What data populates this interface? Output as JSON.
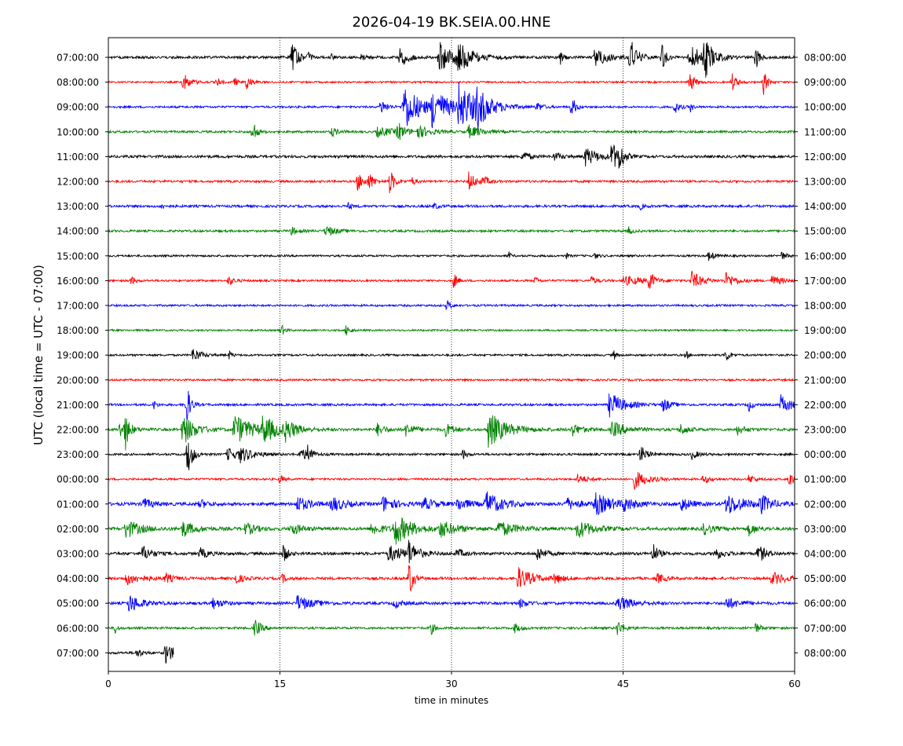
{
  "chart_data": {
    "type": "line",
    "title": "2026-04-19 BK.SEIA.00.HNE",
    "xlabel": "time in minutes",
    "ylabel": "UTC (local time = UTC - 07:00)",
    "xlim": [
      0,
      60
    ],
    "x_ticks": [
      0,
      15,
      30,
      45,
      60
    ],
    "vertical_gridlines_at": [
      15,
      30,
      45
    ],
    "grid": "x-only dotted",
    "color_cycle": [
      "#000000",
      "#ff0000",
      "#0000ff",
      "#008000"
    ],
    "rows": [
      {
        "left": "07:00:00",
        "right": "08:00:00",
        "base": 1.2,
        "until": 60,
        "events": [
          [
            16,
            5,
            0.5
          ],
          [
            17.5,
            1.2,
            0.2
          ],
          [
            19.5,
            1.0,
            0.2
          ],
          [
            22,
            1,
            0.5
          ],
          [
            25.5,
            3.5,
            0.6
          ],
          [
            28.9,
            5,
            1
          ],
          [
            30.4,
            5,
            1.2
          ],
          [
            39.5,
            2.5,
            0.2
          ],
          [
            42.5,
            3,
            1
          ],
          [
            45.6,
            7,
            0.5
          ],
          [
            48.4,
            4,
            0.3
          ],
          [
            50.8,
            4,
            1.2
          ],
          [
            52.1,
            6,
            0.6
          ],
          [
            56.6,
            4,
            0.3
          ]
        ]
      },
      {
        "left": "08:00:00",
        "right": "09:00:00",
        "base": 0.8,
        "until": 60,
        "events": [
          [
            6.5,
            3,
            0.6
          ],
          [
            9.5,
            1.5,
            0.3
          ],
          [
            11,
            1.5,
            0.3
          ],
          [
            12,
            3,
            0.4
          ],
          [
            50.8,
            3.5,
            0.4
          ],
          [
            54.5,
            3,
            0.4
          ],
          [
            57.3,
            4,
            0.3
          ]
        ]
      },
      {
        "left": "09:00:00",
        "right": "10:00:00",
        "base": 0.9,
        "until": 60,
        "events": [
          [
            23.8,
            2.5,
            0.5
          ],
          [
            25.8,
            8,
            1.3
          ],
          [
            28.3,
            6,
            1.3
          ],
          [
            30.6,
            7,
            1.6
          ],
          [
            32.2,
            5,
            0.9
          ],
          [
            37.5,
            1.5,
            0.4
          ],
          [
            40.5,
            4,
            0.3
          ],
          [
            49.5,
            2,
            0.4
          ],
          [
            50.9,
            1.5,
            0.2
          ]
        ]
      },
      {
        "left": "10:00:00",
        "right": "11:00:00",
        "base": 1.0,
        "until": 60,
        "events": [
          [
            12.6,
            4.5,
            0.3
          ],
          [
            19.5,
            1.5,
            0.5
          ],
          [
            23.5,
            1.5,
            1.5
          ],
          [
            25.3,
            3,
            0.5
          ],
          [
            27,
            2,
            1
          ],
          [
            31.5,
            2,
            1
          ]
        ]
      },
      {
        "left": "11:00:00",
        "right": "12:00:00",
        "base": 1.2,
        "until": 60,
        "events": [
          [
            36.2,
            2,
            0.5
          ],
          [
            39,
            1.2,
            0.6
          ],
          [
            41.7,
            3,
            1
          ],
          [
            44,
            5,
            0.5
          ],
          [
            44.7,
            4.5,
            0.3
          ]
        ]
      },
      {
        "left": "12:00:00",
        "right": "13:00:00",
        "base": 1.0,
        "until": 60,
        "events": [
          [
            21.8,
            3,
            0.5
          ],
          [
            22.8,
            2.5,
            0.4
          ],
          [
            24.6,
            4,
            0.4
          ],
          [
            26.5,
            1.5,
            0.3
          ],
          [
            31.5,
            3,
            0.6
          ],
          [
            32.8,
            1.5,
            0.4
          ]
        ]
      },
      {
        "left": "13:00:00",
        "right": "14:00:00",
        "base": 1.1,
        "until": 60,
        "events": [
          [
            4.6,
            1,
            0.3
          ],
          [
            21,
            1,
            0.3
          ],
          [
            28.5,
            1,
            0.3
          ],
          [
            46.5,
            1,
            0.3
          ]
        ]
      },
      {
        "left": "14:00:00",
        "right": "15:00:00",
        "base": 1.0,
        "until": 60,
        "events": [
          [
            16,
            1.3,
            0.5
          ],
          [
            19,
            1.8,
            0.8
          ],
          [
            45.5,
            1.2,
            0.3
          ]
        ]
      },
      {
        "left": "15:00:00",
        "right": "16:00:00",
        "base": 0.9,
        "until": 60,
        "events": [
          [
            35,
            1.2,
            0.2
          ],
          [
            40,
            1,
            0.2
          ],
          [
            42.5,
            1,
            0.3
          ],
          [
            52.5,
            1.5,
            0.5
          ],
          [
            58.8,
            1.5,
            0.4
          ]
        ]
      },
      {
        "left": "16:00:00",
        "right": "17:00:00",
        "base": 0.9,
        "until": 60,
        "events": [
          [
            2,
            1.5,
            0.3
          ],
          [
            10.5,
            1.5,
            0.5
          ],
          [
            30.2,
            2.5,
            0.3
          ],
          [
            37.3,
            1.2,
            0.3
          ],
          [
            42.2,
            1.3,
            0.5
          ],
          [
            45,
            1.5,
            1.8
          ],
          [
            47.3,
            4,
            0.3
          ],
          [
            51,
            3,
            0.8
          ],
          [
            54,
            2.5,
            0.8
          ],
          [
            58,
            1.5,
            1
          ]
        ]
      },
      {
        "left": "17:00:00",
        "right": "18:00:00",
        "base": 0.9,
        "until": 60,
        "events": [
          [
            29.6,
            1.8,
            0.3
          ]
        ]
      },
      {
        "left": "18:00:00",
        "right": "19:00:00",
        "base": 0.8,
        "until": 60,
        "events": [
          [
            15.1,
            2,
            0.3
          ],
          [
            20.8,
            2,
            0.3
          ]
        ]
      },
      {
        "left": "19:00:00",
        "right": "20:00:00",
        "base": 0.9,
        "until": 60,
        "events": [
          [
            7.4,
            2.5,
            0.6
          ],
          [
            10.6,
            1.5,
            0.2
          ],
          [
            44.2,
            1.5,
            0.2
          ],
          [
            50.5,
            1.5,
            0.2
          ],
          [
            54,
            2.5,
            0.3
          ]
        ]
      },
      {
        "left": "20:00:00",
        "right": "21:00:00",
        "base": 0.9,
        "until": 60,
        "events": []
      },
      {
        "left": "21:00:00",
        "right": "22:00:00",
        "base": 1.0,
        "until": 60,
        "events": [
          [
            4,
            1.5,
            0.2
          ],
          [
            6.8,
            8,
            0.3
          ],
          [
            43.8,
            4,
            1.2
          ],
          [
            48.5,
            2.5,
            0.5
          ],
          [
            56,
            2,
            0.3
          ],
          [
            58.8,
            3,
            0.9
          ]
        ]
      },
      {
        "left": "22:00:00",
        "right": "23:00:00",
        "base": 1.2,
        "until": 60,
        "events": [
          [
            1,
            2.5,
            0.7
          ],
          [
            1.5,
            5,
            0.3
          ],
          [
            6.5,
            5,
            1
          ],
          [
            11,
            5,
            1.5
          ],
          [
            13.5,
            4,
            1.2
          ],
          [
            15.5,
            3,
            0.8
          ],
          [
            23.5,
            2,
            0.6
          ],
          [
            26,
            2,
            0.8
          ],
          [
            29.5,
            2,
            0.7
          ],
          [
            33.2,
            6,
            1.4
          ],
          [
            40.5,
            2,
            0.8
          ],
          [
            44,
            2.5,
            1.2
          ],
          [
            50,
            1.8,
            0.6
          ],
          [
            55,
            1.5,
            0.6
          ]
        ]
      },
      {
        "left": "23:00:00",
        "right": "00:00:00",
        "base": 1.0,
        "until": 60,
        "events": [
          [
            6.9,
            7,
            0.4
          ],
          [
            10.4,
            2,
            1
          ],
          [
            11.5,
            2,
            1.1
          ],
          [
            16.8,
            2,
            0.7
          ],
          [
            17.5,
            5,
            0.2
          ],
          [
            31,
            1.5,
            0.3
          ],
          [
            46.5,
            3,
            0.5
          ],
          [
            51,
            1.5,
            0.5
          ]
        ]
      },
      {
        "left": "00:00:00",
        "right": "01:00:00",
        "base": 0.9,
        "until": 60,
        "events": [
          [
            15,
            1.5,
            0.3
          ],
          [
            41,
            1.5,
            0.8
          ],
          [
            46,
            3,
            1
          ],
          [
            52,
            1.5,
            0.5
          ],
          [
            56,
            1.5,
            0.5
          ],
          [
            59.5,
            2.5,
            0.5
          ]
        ]
      },
      {
        "left": "01:00:00",
        "right": "02:00:00",
        "base": 1.4,
        "until": 60,
        "events": [
          [
            3,
            2,
            0.7
          ],
          [
            8,
            1.5,
            0.6
          ],
          [
            16.5,
            2.5,
            1
          ],
          [
            19.5,
            2.5,
            1
          ],
          [
            24,
            2.5,
            1
          ],
          [
            27.5,
            2,
            1
          ],
          [
            30.5,
            2,
            1
          ],
          [
            33,
            4,
            1.2
          ],
          [
            40,
            2,
            1
          ],
          [
            42.5,
            3.5,
            1.5
          ],
          [
            45,
            2,
            0.8
          ],
          [
            50,
            2.5,
            0.8
          ],
          [
            54,
            3.5,
            1.5
          ],
          [
            57,
            3,
            0.8
          ]
        ]
      },
      {
        "left": "02:00:00",
        "right": "03:00:00",
        "base": 1.4,
        "until": 60,
        "events": [
          [
            1.5,
            3,
            1.2
          ],
          [
            6.5,
            2.5,
            1
          ],
          [
            12,
            2,
            0.8
          ],
          [
            16,
            2,
            0.8
          ],
          [
            23,
            2,
            1
          ],
          [
            25,
            5,
            1.4
          ],
          [
            29,
            2.5,
            1.3
          ],
          [
            34,
            2.5,
            1.5
          ],
          [
            41,
            3,
            1.2
          ],
          [
            52,
            2,
            0.7
          ],
          [
            56,
            2,
            0.6
          ]
        ]
      },
      {
        "left": "03:00:00",
        "right": "04:00:00",
        "base": 1.3,
        "until": 60,
        "events": [
          [
            3,
            2.5,
            0.7
          ],
          [
            8,
            1.8,
            0.6
          ],
          [
            15.3,
            3.5,
            0.3
          ],
          [
            24.5,
            2.5,
            1.5
          ],
          [
            26.2,
            4,
            0.6
          ],
          [
            30.5,
            1.5,
            0.5
          ],
          [
            37.5,
            2.5,
            0.6
          ],
          [
            47.6,
            3.5,
            0.4
          ],
          [
            53,
            2,
            0.7
          ],
          [
            56.8,
            3,
            0.6
          ]
        ]
      },
      {
        "left": "04:00:00",
        "right": "05:00:00",
        "base": 1.2,
        "until": 60,
        "events": [
          [
            1.5,
            2,
            1.2
          ],
          [
            5,
            1.5,
            0.6
          ],
          [
            11,
            2,
            0.6
          ],
          [
            15.2,
            1.5,
            0.3
          ],
          [
            26.3,
            7,
            0.3
          ],
          [
            35.8,
            3.5,
            1.2
          ],
          [
            39,
            1.5,
            0.6
          ],
          [
            48,
            1.5,
            0.6
          ],
          [
            58,
            2,
            1.2
          ]
        ]
      },
      {
        "left": "05:00:00",
        "right": "06:00:00",
        "base": 1.2,
        "until": 60,
        "events": [
          [
            1.8,
            3,
            1
          ],
          [
            9,
            2,
            0.8
          ],
          [
            16.5,
            2.5,
            1.2
          ],
          [
            25,
            1.5,
            0.6
          ],
          [
            36,
            1.5,
            0.6
          ],
          [
            44.5,
            2.5,
            1.2
          ],
          [
            54,
            2,
            1
          ]
        ]
      },
      {
        "left": "06:00:00",
        "right": "07:00:00",
        "base": 1.0,
        "until": 60,
        "events": [
          [
            0.6,
            1.8,
            0.2
          ],
          [
            12.8,
            3,
            0.5
          ],
          [
            28.2,
            2,
            0.3
          ],
          [
            35.5,
            1.5,
            0.5
          ],
          [
            44.5,
            2.5,
            0.5
          ],
          [
            56.5,
            2,
            0.4
          ]
        ]
      },
      {
        "left": "07:00:00",
        "right": "08:00:00",
        "base": 1.1,
        "until": 5.7,
        "events": [
          [
            2.5,
            1.5,
            0.4
          ],
          [
            5,
            3.5,
            0.7
          ]
        ]
      }
    ]
  }
}
